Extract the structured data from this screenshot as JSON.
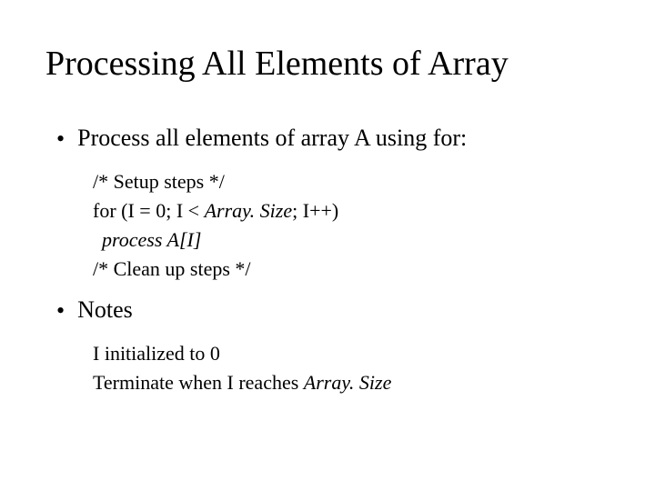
{
  "slide": {
    "title": "Processing All Elements of Array",
    "title_fontsize": 38,
    "body_fontsize_main": 26,
    "body_fontsize_sub": 22,
    "background_color": "#ffffff",
    "text_color": "#000000",
    "font_family": "Times New Roman",
    "bullets": [
      {
        "text": "Process all elements of array A using for:",
        "sub": [
          {
            "text": "/* Setup steps */"
          },
          {
            "html": "for (I = 0; I < <span class=\"italic\">Array. Size</span>; I++)"
          },
          {
            "html": "<span class=\"indent1 italic\">process A[I]</span>"
          },
          {
            "text": "/* Clean up steps */"
          }
        ]
      },
      {
        "text": "Notes",
        "sub": [
          {
            "text": "I initialized to 0"
          },
          {
            "html": "Terminate when I reaches <span class=\"italic\">Array. Size</span>"
          }
        ]
      }
    ]
  }
}
